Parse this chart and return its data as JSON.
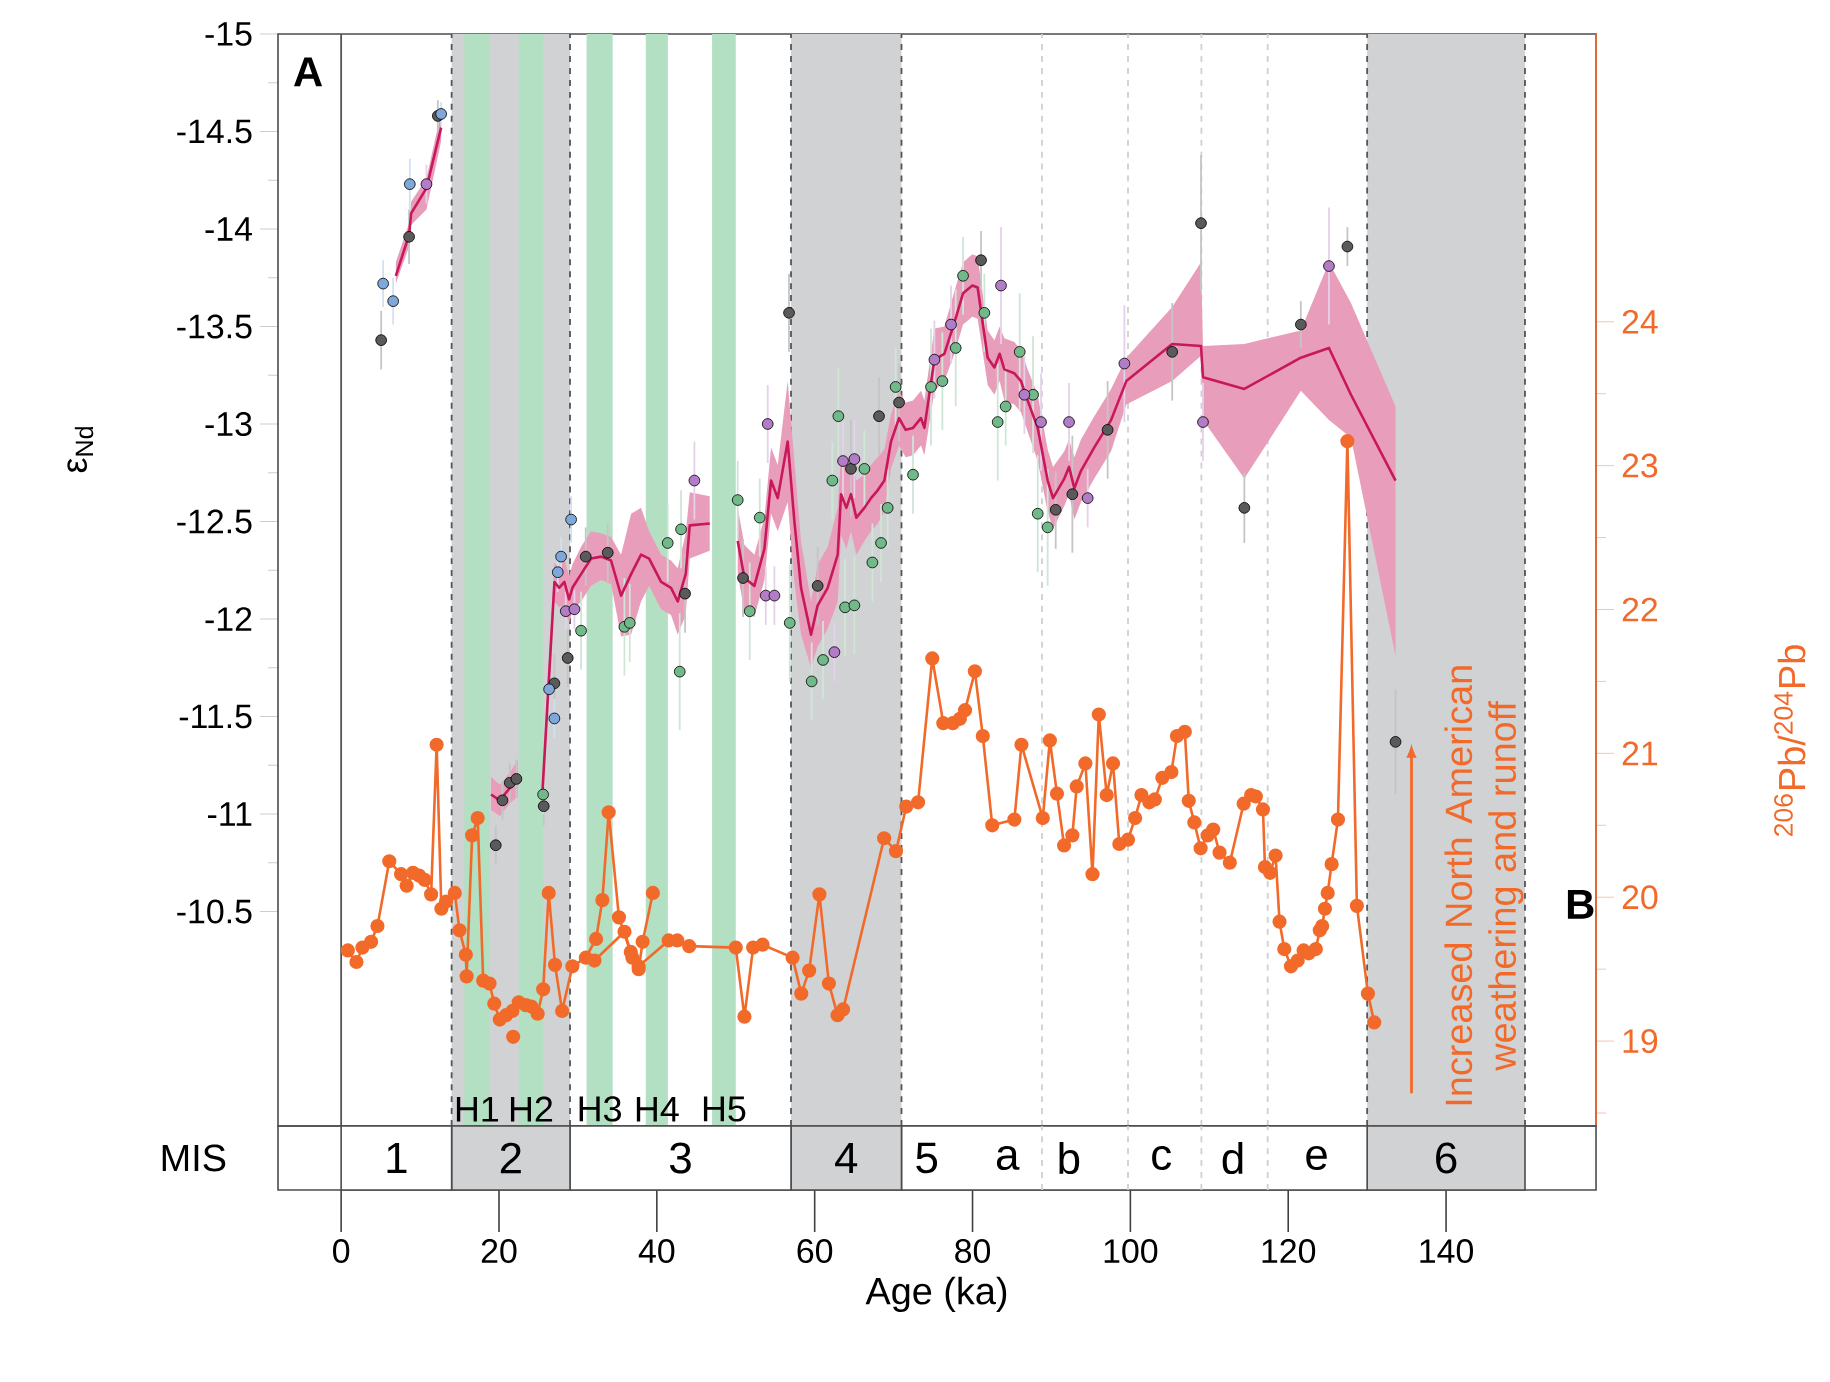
{
  "chart_data": [
    {
      "type": "scatter",
      "xlim": [
        -8,
        159
      ],
      "ylim": [
        -9.4,
        -15
      ],
      "ylabel": "ε$_{Nd}$",
      "y2label": "$^{206}$Pb/$^{204}$Pb",
      "tick_labels": "y",
      "marker": "circle",
      "yticks": [
        -15,
        {
          "value": -14.75,
          "label": null
        },
        -14.5,
        {
          "value": -14.25,
          "label": null
        },
        -14,
        {
          "value": -13.75,
          "label": null
        },
        -13.5,
        {
          "value": -13.25,
          "label": null
        },
        -13,
        {
          "value": -12.75,
          "label": null
        },
        -12.5,
        {
          "value": -12.25,
          "label": null
        },
        -12,
        {
          "value": -11.75,
          "label": null
        },
        -11.5,
        {
          "value": -11.25,
          "label": null
        },
        -11,
        {
          "value": -10.75,
          "label": null
        },
        -10.5
      ],
      "y2lim": [
        18.41,
        26.0
      ],
      "y2ticks": [
        {
          "value": 18.5,
          "label": null
        },
        19,
        {
          "value": 19.5,
          "label": null
        },
        20,
        {
          "value": 20.5,
          "label": null
        },
        21,
        {
          "value": 21.5,
          "label": null
        },
        22,
        {
          "value": 22.5,
          "label": null
        },
        23,
        {
          "value": 23.5,
          "label": null
        },
        24
      ],
      "bands": [
        {
          "axis": "x",
          "from": 14,
          "to": 29,
          "color": "#d1d2d4"
        },
        {
          "axis": "x",
          "from": 57,
          "to": 71,
          "color": "#d1d2d4"
        },
        {
          "axis": "x",
          "from": 130,
          "to": 150,
          "color": "#d1d2d4"
        },
        {
          "axis": "x",
          "from": 15.6,
          "to": 18.8,
          "color": "#b3dfc2",
          "label": "H1"
        },
        {
          "axis": "x",
          "from": 22.5,
          "to": 25.6,
          "color": "#b3dfc2",
          "label": "H2"
        },
        {
          "axis": "x",
          "from": 31.1,
          "to": 34.4,
          "color": "#b3dfc2",
          "label": "H3"
        },
        {
          "axis": "x",
          "from": 38.6,
          "to": 41.4,
          "color": "#b3dfc2",
          "label": "H4"
        },
        {
          "axis": "x",
          "from": 47.0,
          "to": 50.0,
          "color": "#b3dfc2",
          "label": "H5"
        }
      ],
      "ref_lines": [
        {
          "axis": "x",
          "value": 0,
          "color": "#555555",
          "line_style": "solid"
        },
        {
          "axis": "x",
          "value": 14,
          "color": "#555555",
          "line_style": "dashed"
        },
        {
          "axis": "x",
          "value": 29,
          "color": "#555555",
          "line_style": "dashed"
        },
        {
          "axis": "x",
          "value": 57,
          "color": "#555555",
          "line_style": "dashed"
        },
        {
          "axis": "x",
          "value": 71,
          "color": "#555555",
          "line_style": "dashed"
        },
        {
          "axis": "x",
          "value": 130,
          "color": "#555555",
          "line_style": "dashed"
        },
        {
          "axis": "x",
          "value": 150,
          "color": "#555555",
          "line_style": "dashed"
        },
        {
          "axis": "x",
          "value": 88.8,
          "color": "#d0d0d0",
          "line_style": "dashed"
        },
        {
          "axis": "x",
          "value": 99.7,
          "color": "#d0d0d0",
          "line_style": "dashed"
        },
        {
          "axis": "x",
          "value": 109,
          "color": "#d0d0d0",
          "line_style": "dashed"
        },
        {
          "axis": "x",
          "value": 117.4,
          "color": "#d0d0d0",
          "line_style": "dashed"
        }
      ],
      "annotations": [
        "A",
        "B",
        "Increased North American weathering and runoff"
      ],
      "series": [
        {
          "type": "scatter",
          "color": "#5a5a5a",
          "x": [
            5.07,
            8.61,
            12.25,
            19.59,
            20.44,
            21.37,
            22.21,
            25.67,
            27.02,
            28.71,
            30.99,
            33.78,
            43.58,
            50.92,
            56.75,
            60.38,
            64.6,
            68.15,
            70.69,
            81.08,
            90.54,
            92.65,
            97.12,
            105.3,
            108.95,
            114.44,
            121.6,
            127.5,
            133.6
          ],
          "values": [
            -13.43,
            -13.96,
            -14.58,
            -10.84,
            -11.07,
            -11.16,
            -11.18,
            -11.04,
            -11.67,
            -11.8,
            -12.32,
            -12.34,
            -12.13,
            -12.21,
            -13.57,
            -12.17,
            -12.77,
            -13.04,
            -13.11,
            -13.84,
            -12.56,
            -12.64,
            -12.97,
            -13.37,
            -14.03,
            -12.57,
            -13.51,
            -13.91,
            -11.37
          ],
          "errors": [
            0.15,
            0.14,
            0.08,
            0.1,
            0.1,
            0.1,
            0.1,
            0.1,
            0.15,
            0.15,
            0.15,
            0.15,
            0.2,
            0.2,
            0.2,
            0.2,
            0.25,
            0.2,
            0.2,
            0.15,
            0.2,
            0.3,
            0.25,
            0.25,
            0.35,
            0.18,
            0.12,
            0.1,
            0.27
          ]
        },
        {
          "type": "scatter",
          "color": "#7fa7d9",
          "x": [
            5.32,
            6.59,
            8.7,
            12.67,
            26.35,
            27.02,
            27.45,
            27.87,
            29.14
          ],
          "values": [
            -13.72,
            -13.63,
            -14.23,
            -14.59,
            -11.64,
            -11.49,
            -12.24,
            -12.32,
            -12.51
          ],
          "errors": [
            0.12,
            0.12,
            0.13,
            0.06,
            0.1,
            0.1,
            0.1,
            0.1,
            0.12
          ]
        },
        {
          "type": "scatter",
          "color": "#72b98a",
          "x": [
            25.59,
            30.4,
            35.89,
            36.57,
            41.38,
            42.9,
            43.07,
            50.25,
            51.77,
            53.04,
            56.84,
            59.62,
            61.06,
            62.24,
            63.0,
            63.85,
            65.03,
            66.3,
            67.31,
            68.41,
            69.25,
            70.26,
            72.46,
            74.74,
            76.18,
            77.87,
            78.8,
            81.5,
            83.19,
            84.2,
            85.98,
            87.67,
            88.26,
            89.52
          ],
          "values": [
            -11.1,
            -11.94,
            -11.96,
            -11.98,
            -12.39,
            -11.73,
            -12.46,
            -12.61,
            -12.04,
            -12.52,
            -11.98,
            -11.68,
            -11.79,
            -12.71,
            -13.04,
            -12.06,
            -12.07,
            -12.77,
            -12.29,
            -12.39,
            -12.57,
            -13.19,
            -12.74,
            -13.19,
            -13.22,
            -13.39,
            -13.76,
            -13.57,
            -13.01,
            -13.09,
            -13.37,
            -13.15,
            -12.54,
            -12.47
          ],
          "errors": [
            0.1,
            0.2,
            0.25,
            0.2,
            0.2,
            0.3,
            0.2,
            0.2,
            0.25,
            0.2,
            0.3,
            0.2,
            0.2,
            0.2,
            0.25,
            0.25,
            0.25,
            0.2,
            0.2,
            0.2,
            0.2,
            0.2,
            0.2,
            0.3,
            0.25,
            0.3,
            0.2,
            0.2,
            0.3,
            0.2,
            0.3,
            0.3,
            0.3,
            0.3
          ]
        },
        {
          "type": "scatter",
          "color": "#b27cc6",
          "x": [
            10.81,
            28.46,
            29.56,
            44.76,
            53.8,
            54.05,
            54.9,
            62.5,
            63.59,
            65.03,
            75.17,
            77.28,
            83.61,
            86.57,
            88.68,
            92.23,
            94.59,
            99.24,
            109.2,
            125.16
          ],
          "values": [
            -14.23,
            -12.04,
            -12.05,
            -12.71,
            -12.12,
            -13.0,
            -12.12,
            -11.83,
            -12.81,
            -12.82,
            -13.33,
            -13.51,
            -13.71,
            -13.15,
            -13.01,
            -13.01,
            -12.62,
            -13.31,
            -13.01,
            -13.81
          ],
          "errors": [
            0.1,
            0.1,
            0.1,
            0.2,
            0.15,
            0.2,
            0.15,
            0.15,
            0.2,
            0.2,
            0.2,
            0.2,
            0.3,
            0.2,
            0.25,
            0.2,
            0.15,
            0.3,
            0.2,
            0.3
          ]
        },
        {
          "type": "line",
          "color": "#c8185a",
          "marker": "none",
          "x": [
            6.93,
            8.61,
            8.87,
            10.81,
            12.67,
            16,
            19.0,
            20.1,
            21.5,
            22.4,
            24,
            25.5,
            27.03,
            27.62,
            28.29,
            28.88,
            29.3,
            30.4,
            31.67,
            32.94,
            34.2,
            35.47,
            36.74,
            38.0,
            39.02,
            40.54,
            41.8,
            42.65,
            43.66,
            44.17,
            46.7,
            48.5,
            50.25,
            51.1,
            52.36,
            53.63,
            54.47,
            55.32,
            56.58,
            57.43,
            58.27,
            59.54,
            60.38,
            61.65,
            62.92,
            63.34,
            64.01,
            64.6,
            65.28,
            66.3,
            67.14,
            67.98,
            68.83,
            69.67,
            70.69,
            71.53,
            72.46,
            73.47,
            73.9,
            75.17,
            76.43,
            77.7,
            78.8,
            79.98,
            80.65,
            81.92,
            82.77,
            83.44,
            84.03,
            85.3,
            86.14,
            86.99,
            88.26,
            89.52,
            90.2,
            91.63,
            92.23,
            92.9,
            93.74,
            95.43,
            97.55,
            99.49,
            105.3,
            108.95,
            109.2,
            114.44,
            121.6,
            125.16,
            127.95,
            133.6
          ],
          "values": [
            -13.76,
            -13.97,
            -14.08,
            -14.21,
            -14.52,
            null,
            -11.1,
            -11.07,
            -11.14,
            -11.17,
            null,
            -11.11,
            -12.19,
            -12.16,
            -12.19,
            -12.1,
            -12.16,
            -12.23,
            -12.31,
            -12.32,
            -12.3,
            -12.12,
            -12.23,
            -12.33,
            -12.31,
            -12.19,
            -12.16,
            -12.09,
            -12.23,
            -12.48,
            -12.49,
            null,
            -12.4,
            -12.21,
            -12.17,
            -12.36,
            -12.71,
            -12.62,
            -12.91,
            -12.5,
            -12.16,
            -11.92,
            -12.07,
            -12.16,
            -12.33,
            -12.64,
            -12.57,
            -12.64,
            -12.52,
            -12.57,
            -12.62,
            -12.66,
            -12.71,
            -12.91,
            -13.03,
            -12.97,
            -12.98,
            -13.03,
            -12.98,
            -13.33,
            -13.36,
            -13.52,
            -13.67,
            -13.71,
            -13.7,
            -13.34,
            -13.29,
            -13.36,
            -13.28,
            -13.26,
            -13.22,
            -13.12,
            -12.98,
            -12.71,
            -12.62,
            -12.72,
            -12.78,
            -12.67,
            -12.76,
            -12.88,
            -13.02,
            -13.22,
            -13.41,
            -13.4,
            -13.24,
            -13.18,
            -13.34,
            -13.39,
            -13.15,
            -12.71
          ],
          "lower": [
            -13.83,
            -14.03,
            -14.14,
            -14.26,
            -14.6,
            null,
            -11.19,
            -11.15,
            -11.22,
            -11.28,
            null,
            -11.19,
            -12.29,
            -12.26,
            -12.31,
            -12.22,
            -12.28,
            -12.37,
            -12.45,
            -12.44,
            -12.42,
            -12.33,
            -12.54,
            -12.57,
            -12.45,
            -12.33,
            -12.3,
            -12.26,
            -12.44,
            -12.65,
            -12.63,
            null,
            -12.57,
            -12.38,
            -12.33,
            -12.52,
            -12.88,
            -12.79,
            -13.22,
            -12.81,
            -12.4,
            -12.09,
            -12.28,
            -12.37,
            -12.57,
            -12.85,
            -12.78,
            -12.83,
            -12.71,
            -12.74,
            -12.79,
            -12.83,
            -12.87,
            -13.05,
            -13.17,
            -13.11,
            -13.12,
            -13.17,
            -13.12,
            -13.49,
            -13.5,
            -13.68,
            -13.83,
            -13.87,
            -13.86,
            -13.48,
            -13.43,
            -13.5,
            -13.44,
            -13.42,
            -13.38,
            -13.28,
            -13.15,
            -12.87,
            -12.78,
            -12.86,
            -12.92,
            -12.83,
            -12.92,
            -13.04,
            -13.18,
            -13.34,
            -13.6,
            -13.83,
            -13.4,
            -13.41,
            -13.48,
            -13.83,
            -13.62,
            -13.09
          ],
          "upper": [
            -13.72,
            -13.91,
            -14.02,
            -14.1,
            -14.45,
            null,
            -11.02,
            -10.99,
            -11.06,
            -11.09,
            null,
            -11.02,
            -12.09,
            -12.06,
            -12.07,
            -11.98,
            -12.04,
            -12.09,
            -12.17,
            -12.2,
            -12.18,
            -11.91,
            -11.92,
            -12.09,
            -12.17,
            -12.05,
            -12.02,
            -11.92,
            -12.02,
            -12.31,
            -12.35,
            null,
            -12.23,
            -12.04,
            -12.01,
            -12.2,
            -12.54,
            -12.45,
            -12.6,
            -12.19,
            -11.92,
            -11.75,
            -11.86,
            -11.95,
            -12.09,
            -12.43,
            -12.36,
            -12.45,
            -12.33,
            -12.4,
            -12.45,
            -12.49,
            -12.55,
            -12.77,
            -12.89,
            -12.83,
            -12.84,
            -12.89,
            -12.84,
            -13.17,
            -13.22,
            -13.36,
            -13.51,
            -13.55,
            -13.54,
            -13.2,
            -13.15,
            -13.22,
            -13.12,
            -13.1,
            -13.06,
            -12.96,
            -12.81,
            -12.55,
            -12.46,
            -12.58,
            -12.64,
            -12.51,
            -12.6,
            -12.72,
            -12.86,
            -13.1,
            -13.22,
            -13.35,
            -13.02,
            -12.72,
            -13.17,
            -13.02,
            -12.93,
            -11.81
          ]
        },
        {
          "type": "line",
          "axis": "y2",
          "color": "#f26a2a",
          "x": [
            0.85,
            1.94,
            2.7,
            3.8,
            4.6,
            6.1,
            7.6,
            8.3,
            9.1,
            9.9,
            10.6,
            11.4,
            12.1,
            12.7,
            13.3,
            14.4,
            15.0,
            15.8,
            15.9,
            16.6,
            17.3,
            18.0,
            18.8,
            19.4,
            20.1,
            20.9,
            21.7,
            22.5,
            23.4,
            24.1,
            24.9,
            25.6,
            26.3,
            27.1,
            28.0,
            29.3,
            31.0,
            32.3,
            33.1,
            33.9,
            35.2,
            36.9,
            37.7,
            38.2,
            39.5
          ],
          "values": [
            19.63,
            19.55,
            19.65,
            19.69,
            19.8,
            20.25,
            20.16,
            20.08,
            20.17,
            20.15,
            20.12,
            20.02,
            21.06,
            19.92,
            19.97,
            20.03,
            19.77,
            19.6,
            19.45,
            20.43,
            20.55,
            19.42,
            19.4,
            19.26,
            19.15,
            19.18,
            19.21,
            19.27,
            19.25,
            19.24,
            19.19,
            19.36,
            20.03,
            19.53,
            19.21,
            19.52,
            19.58,
            19.71,
            19.98,
            20.59,
            19.86,
            19.58,
            19.5,
            19.69,
            20.03
          ]
        },
        {
          "type": "line",
          "axis": "y2",
          "color": "#f26a2a",
          "x": [
            21.8,
            27,
            32.1,
            35.9,
            36.7,
            37.7,
            41.5,
            42.6,
            44.1,
            50.0,
            51.1,
            52.2,
            53.4,
            57.2,
            58.3,
            59.3,
            60.6,
            61.8,
            62.9,
            63.6,
            68.8,
            70.3,
            71.6,
            73.1,
            74.9,
            76.3,
            77.5,
            78.4,
            79.05,
            80.3,
            81.3,
            82.5,
            85.3,
            86.2,
            88.9,
            89.8,
            90.7,
            91.6,
            92.65,
            93.2,
            94.3,
            95.2,
            96.0,
            97.0,
            97.8,
            98.6,
            99.7,
            100.6,
            101.4,
            102.4,
            103.1,
            104.05,
            105.2,
            105.9,
            106.9,
            107.4,
            108.1,
            108.9,
            109.8,
            110.5,
            111.3,
            112.6,
            114.35,
            115.3,
            115.9,
            116.8,
            117.05,
            117.7,
            118.4,
            118.9,
            119.5,
            120.35,
            121.2,
            121.95,
            122.6,
            123.5,
            124.0,
            124.3,
            124.65,
            125.0,
            125.5,
            126.3,
            127.5,
            128.7,
            130.1,
            130.9
          ],
          "values": [
            19.03,
            null,
            19.56,
            19.76,
            19.62,
            19.52,
            19.7,
            19.7,
            19.66,
            19.65,
            19.17,
            19.65,
            19.67,
            19.58,
            19.33,
            19.49,
            20.02,
            19.4,
            19.18,
            19.22,
            20.41,
            20.32,
            20.63,
            20.66,
            21.66,
            21.21,
            21.21,
            21.24,
            21.3,
            21.57,
            21.12,
            20.5,
            20.54,
            21.06,
            20.55,
            21.09,
            20.72,
            20.36,
            20.43,
            20.77,
            20.93,
            20.16,
            21.27,
            20.71,
            20.93,
            20.37,
            20.4,
            20.55,
            20.71,
            20.66,
            20.68,
            20.83,
            20.87,
            21.12,
            21.15,
            20.67,
            20.52,
            20.34,
            20.43,
            20.47,
            20.31,
            20.24,
            20.65,
            20.71,
            20.7,
            20.61,
            20.21,
            20.17,
            20.29,
            19.83,
            19.64,
            19.52,
            19.56,
            19.63,
            19.61,
            19.64,
            19.77,
            19.8,
            19.92,
            20.03,
            20.23,
            20.54,
            23.17,
            19.94,
            19.33,
            19.13
          ]
        }
      ]
    },
    {
      "type": "bar",
      "orientation": "horizontal",
      "stacked": true,
      "categories": [
        "MIS"
      ],
      "xlim": [
        -8,
        159
      ],
      "xlabel": "Age (ka)",
      "xticks": [
        0,
        20,
        40,
        60,
        80,
        100,
        120,
        140
      ],
      "series": [
        {
          "name": "1",
          "color": "#ffffff",
          "values": [
            14
          ]
        },
        {
          "name": "2",
          "color": "#d1d2d4",
          "values": [
            15
          ]
        },
        {
          "name": "3",
          "color": "#ffffff",
          "values": [
            28
          ]
        },
        {
          "name": "4",
          "color": "#d1d2d4",
          "values": [
            14
          ]
        },
        {
          "color": "#ffffff",
          "values": [
            59
          ]
        },
        {
          "name": "6",
          "color": "#d1d2d4",
          "values": [
            20
          ]
        }
      ],
      "ref_lines": [
        {
          "axis": "x",
          "value": 88.8,
          "color": "#d0d0d0",
          "line_style": "dashed"
        },
        {
          "axis": "x",
          "value": 99.7,
          "color": "#d0d0d0",
          "line_style": "dashed"
        },
        {
          "axis": "x",
          "value": 109,
          "color": "#d0d0d0",
          "line_style": "dashed"
        },
        {
          "axis": "x",
          "value": 117.4,
          "color": "#d0d0d0",
          "line_style": "dashed"
        }
      ],
      "annotations": [
        "5",
        "a",
        "b",
        "c",
        "d",
        "e"
      ]
    }
  ]
}
